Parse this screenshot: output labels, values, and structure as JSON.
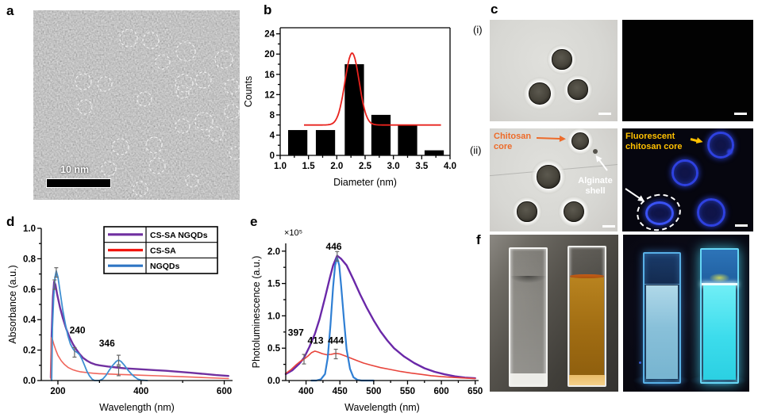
{
  "panels": {
    "a": {
      "label": "a",
      "scale_bar_label": "10 nm",
      "highlight_circles": [
        [
          120,
          35,
          11
        ],
        [
          148,
          38,
          10
        ],
        [
          192,
          52,
          12
        ],
        [
          240,
          62,
          11
        ],
        [
          63,
          90,
          10
        ],
        [
          90,
          93,
          9
        ],
        [
          163,
          65,
          9
        ],
        [
          190,
          92,
          11
        ],
        [
          214,
          88,
          10
        ],
        [
          250,
          96,
          9
        ],
        [
          65,
          122,
          9
        ],
        [
          140,
          112,
          9
        ],
        [
          188,
          103,
          8
        ],
        [
          215,
          140,
          11
        ],
        [
          188,
          146,
          9
        ],
        [
          152,
          170,
          10
        ],
        [
          110,
          172,
          10
        ],
        [
          230,
          156,
          9
        ],
        [
          250,
          128,
          9
        ],
        [
          156,
          196,
          10
        ],
        [
          95,
          200,
          9
        ],
        [
          135,
          225,
          9
        ],
        [
          200,
          215,
          8
        ],
        [
          255,
          180,
          8
        ]
      ]
    },
    "b": {
      "label": "b"
    },
    "c": {
      "label": "c",
      "row1_label": "(i)",
      "row2_label": "(ii)",
      "chitosan_core": "Chitosan core",
      "alginate_shell": "Alginate shell",
      "fluorescent_core": "Fluorescent chitosan core",
      "colors": {
        "chitosan_label": "#ed6b2a",
        "alginate_label": "#ffffff",
        "fluorescent_label": "#ffc000"
      }
    },
    "d": {
      "label": "d"
    },
    "e": {
      "label": "e"
    },
    "f": {
      "label": "f"
    }
  },
  "chart_data": [
    {
      "id": "b",
      "type": "bar",
      "xlabel": "Diameter (nm)",
      "ylabel": "Counts",
      "xlim": [
        1.0,
        4.0
      ],
      "ylim": [
        0,
        25.2
      ],
      "frame": true,
      "grid": false,
      "xticks": [
        1.0,
        1.5,
        2.0,
        2.5,
        3.0,
        3.5,
        4.0
      ],
      "xtick_labels": [
        "1.0",
        "1.5",
        "2.0",
        "2.5",
        "3.0",
        "3.5",
        "4.0"
      ],
      "xminor": [
        1.25,
        1.75,
        2.25,
        2.75,
        3.25,
        3.75
      ],
      "yticks": [
        0,
        4,
        8,
        12,
        16,
        20,
        24
      ],
      "ytick_labels": [
        "0",
        "4",
        "8",
        "12",
        "16",
        "20",
        "24"
      ],
      "yminor": [
        2,
        6,
        10,
        14,
        18,
        22
      ],
      "bar_color": "#000000",
      "bar_width": 0.34,
      "bar_centers": [
        1.31,
        1.8,
        2.31,
        2.78,
        3.25,
        3.72
      ],
      "bar_values": [
        5,
        5,
        18,
        8,
        6,
        1
      ],
      "fit_curve": {
        "color": "#e8231e",
        "baseline": 6,
        "amplitude": 14.2,
        "mu": 2.27,
        "sigma": 0.125,
        "range": [
          1.42,
          3.85
        ]
      }
    },
    {
      "id": "d",
      "type": "line",
      "xlabel": "Wavelength (nm)",
      "ylabel": "Absorbance (a.u.)",
      "xlim": [
        160,
        620
      ],
      "ylim": [
        0,
        1.0
      ],
      "frame": false,
      "grid": false,
      "xticks": [
        200,
        400,
        600
      ],
      "xtick_labels": [
        "200",
        "400",
        "600"
      ],
      "xminor": [
        300,
        500
      ],
      "yticks": [
        0.0,
        0.2,
        0.4,
        0.6,
        0.8,
        1.0
      ],
      "ytick_labels": [
        "0.0",
        "0.2",
        "0.4",
        "0.6",
        "0.8",
        "1.0"
      ],
      "yminor": [
        0.1,
        0.3,
        0.5,
        0.7,
        0.9
      ],
      "legend": {
        "position": "top-right",
        "entries": [
          "CS-SA NGQDs",
          "CS-SA",
          "NGQDs"
        ],
        "colors": [
          "#7030a0",
          "#f2150f",
          "#2e75c4"
        ]
      },
      "annotations": [
        {
          "text": "240",
          "x": 247,
          "y": 0.31
        },
        {
          "text": "346",
          "x": 318,
          "y": 0.225
        }
      ],
      "error_bars": [
        {
          "x": 192,
          "y": 0.63
        },
        {
          "x": 196,
          "y": 0.71
        },
        {
          "x": 240,
          "y": 0.185
        },
        {
          "x": 346,
          "y": 0.135
        },
        {
          "x": 346,
          "y": 0.063
        }
      ],
      "series": [
        {
          "name": "CS-SA NGQDs",
          "color": "#7030a0",
          "width": 2.4,
          "points": [
            [
              183,
              0.02
            ],
            [
              185,
              0.3
            ],
            [
              188,
              0.55
            ],
            [
              191,
              0.65
            ],
            [
              194,
              0.63
            ],
            [
              198,
              0.57
            ],
            [
              205,
              0.48
            ],
            [
              212,
              0.41
            ],
            [
              220,
              0.34
            ],
            [
              228,
              0.285
            ],
            [
              236,
              0.24
            ],
            [
              244,
              0.205
            ],
            [
              252,
              0.175
            ],
            [
              260,
              0.15
            ],
            [
              270,
              0.13
            ],
            [
              280,
              0.115
            ],
            [
              290,
              0.105
            ],
            [
              300,
              0.1
            ],
            [
              320,
              0.092
            ],
            [
              340,
              0.086
            ],
            [
              360,
              0.08
            ],
            [
              380,
              0.077
            ],
            [
              400,
              0.074
            ],
            [
              430,
              0.069
            ],
            [
              460,
              0.064
            ],
            [
              490,
              0.058
            ],
            [
              520,
              0.051
            ],
            [
              550,
              0.044
            ],
            [
              580,
              0.036
            ],
            [
              610,
              0.03
            ]
          ]
        },
        {
          "name": "CS-SA",
          "color": "#f0655b",
          "width": 1.6,
          "points": [
            [
              183,
              0.01
            ],
            [
              184,
              0.28
            ],
            [
              187,
              0.27
            ],
            [
              190,
              0.24
            ],
            [
              195,
              0.2
            ],
            [
              200,
              0.165
            ],
            [
              208,
              0.13
            ],
            [
              216,
              0.105
            ],
            [
              225,
              0.085
            ],
            [
              235,
              0.072
            ],
            [
              245,
              0.063
            ],
            [
              255,
              0.057
            ],
            [
              270,
              0.052
            ],
            [
              285,
              0.048
            ],
            [
              300,
              0.045
            ],
            [
              330,
              0.042
            ],
            [
              346,
              0.04
            ],
            [
              370,
              0.038
            ],
            [
              400,
              0.035
            ],
            [
              440,
              0.031
            ],
            [
              480,
              0.027
            ],
            [
              520,
              0.023
            ],
            [
              560,
              0.018
            ],
            [
              610,
              0.013
            ]
          ]
        },
        {
          "name": "NGQDs",
          "color": "#3f8fd2",
          "width": 1.8,
          "points": [
            [
              185,
              0.0
            ],
            [
              187,
              0.35
            ],
            [
              190,
              0.55
            ],
            [
              193,
              0.68
            ],
            [
              196,
              0.72
            ],
            [
              200,
              0.68
            ],
            [
              206,
              0.57
            ],
            [
              212,
              0.46
            ],
            [
              218,
              0.37
            ],
            [
              224,
              0.295
            ],
            [
              230,
              0.24
            ],
            [
              236,
              0.21
            ],
            [
              240,
              0.195
            ],
            [
              246,
              0.185
            ],
            [
              252,
              0.17
            ],
            [
              258,
              0.14
            ],
            [
              264,
              0.1
            ],
            [
              270,
              0.06
            ],
            [
              276,
              0.03
            ],
            [
              282,
              0.01
            ],
            [
              288,
              0.0
            ],
            [
              300,
              0.0
            ],
            [
              308,
              0.01
            ],
            [
              316,
              0.035
            ],
            [
              324,
              0.07
            ],
            [
              332,
              0.1
            ],
            [
              340,
              0.125
            ],
            [
              346,
              0.135
            ],
            [
              352,
              0.125
            ],
            [
              360,
              0.1
            ],
            [
              368,
              0.07
            ],
            [
              376,
              0.045
            ],
            [
              384,
              0.025
            ],
            [
              392,
              0.01
            ],
            [
              400,
              0.003
            ],
            [
              415,
              0.0
            ]
          ]
        }
      ]
    },
    {
      "id": "e",
      "type": "line",
      "xlabel": "Wavelength (nm)",
      "ylabel": "Photoluminescence (a.u.)",
      "y_multiplier": "×10⁵",
      "xlim": [
        370,
        655
      ],
      "ylim": [
        0,
        2.12
      ],
      "frame": false,
      "grid": false,
      "xticks": [
        400,
        450,
        500,
        550,
        600,
        650
      ],
      "xtick_labels": [
        "400",
        "450",
        "500",
        "550",
        "600",
        "650"
      ],
      "xminor": [
        375,
        425,
        475,
        525,
        575,
        625
      ],
      "yticks": [
        0.0,
        0.5,
        1.0,
        1.5,
        2.0
      ],
      "ytick_labels": [
        "0.0",
        "0.5",
        "1.0",
        "1.5",
        "2.0"
      ],
      "yminor": [
        0.25,
        0.75,
        1.25,
        1.75
      ],
      "annotations": [
        {
          "text": "446",
          "x": 441,
          "y": 2.02
        },
        {
          "text": "397",
          "x": 385,
          "y": 0.69
        },
        {
          "text": "413",
          "x": 414,
          "y": 0.57
        },
        {
          "text": "444",
          "x": 444,
          "y": 0.57
        }
      ],
      "error_bars": [
        {
          "x": 397,
          "y": 0.33
        },
        {
          "x": 444,
          "y": 0.41
        },
        {
          "x": 446,
          "y": 1.92
        }
      ],
      "series": [
        {
          "name": "CS-SA NGQDs",
          "color": "#6a28a8",
          "width": 2.4,
          "points": [
            [
              370,
              0.1
            ],
            [
              380,
              0.16
            ],
            [
              390,
              0.26
            ],
            [
              397,
              0.35
            ],
            [
              405,
              0.52
            ],
            [
              413,
              0.72
            ],
            [
              420,
              0.95
            ],
            [
              428,
              1.28
            ],
            [
              435,
              1.58
            ],
            [
              440,
              1.78
            ],
            [
              446,
              1.93
            ],
            [
              452,
              1.88
            ],
            [
              460,
              1.78
            ],
            [
              470,
              1.56
            ],
            [
              480,
              1.33
            ],
            [
              490,
              1.12
            ],
            [
              500,
              0.93
            ],
            [
              510,
              0.76
            ],
            [
              520,
              0.62
            ],
            [
              530,
              0.5
            ],
            [
              545,
              0.37
            ],
            [
              560,
              0.27
            ],
            [
              575,
              0.19
            ],
            [
              590,
              0.135
            ],
            [
              605,
              0.095
            ],
            [
              620,
              0.065
            ],
            [
              635,
              0.045
            ],
            [
              650,
              0.035
            ]
          ]
        },
        {
          "name": "CS-SA",
          "color": "#e8453c",
          "width": 1.6,
          "points": [
            [
              370,
              0.11
            ],
            [
              378,
              0.17
            ],
            [
              385,
              0.24
            ],
            [
              392,
              0.3
            ],
            [
              397,
              0.33
            ],
            [
              403,
              0.38
            ],
            [
              408,
              0.43
            ],
            [
              413,
              0.455
            ],
            [
              418,
              0.44
            ],
            [
              424,
              0.415
            ],
            [
              430,
              0.4
            ],
            [
              437,
              0.405
            ],
            [
              444,
              0.42
            ],
            [
              450,
              0.41
            ],
            [
              458,
              0.38
            ],
            [
              466,
              0.345
            ],
            [
              475,
              0.31
            ],
            [
              485,
              0.27
            ],
            [
              495,
              0.24
            ],
            [
              510,
              0.2
            ],
            [
              525,
              0.17
            ],
            [
              540,
              0.14
            ],
            [
              555,
              0.115
            ],
            [
              570,
              0.095
            ],
            [
              585,
              0.075
            ],
            [
              600,
              0.06
            ],
            [
              615,
              0.05
            ],
            [
              630,
              0.04
            ],
            [
              650,
              0.03
            ]
          ]
        },
        {
          "name": "NGQDs",
          "color": "#2f7fd4",
          "width": 2.2,
          "points": [
            [
              408,
              0.0
            ],
            [
              415,
              0.0
            ],
            [
              422,
              0.02
            ],
            [
              428,
              0.1
            ],
            [
              432,
              0.35
            ],
            [
              436,
              0.85
            ],
            [
              440,
              1.45
            ],
            [
              443,
              1.78
            ],
            [
              446,
              1.9
            ],
            [
              449,
              1.78
            ],
            [
              452,
              1.45
            ],
            [
              456,
              0.95
            ],
            [
              460,
              0.48
            ],
            [
              465,
              0.18
            ],
            [
              470,
              0.05
            ],
            [
              476,
              0.01
            ],
            [
              482,
              0.0
            ],
            [
              500,
              0.0
            ]
          ]
        }
      ]
    }
  ]
}
